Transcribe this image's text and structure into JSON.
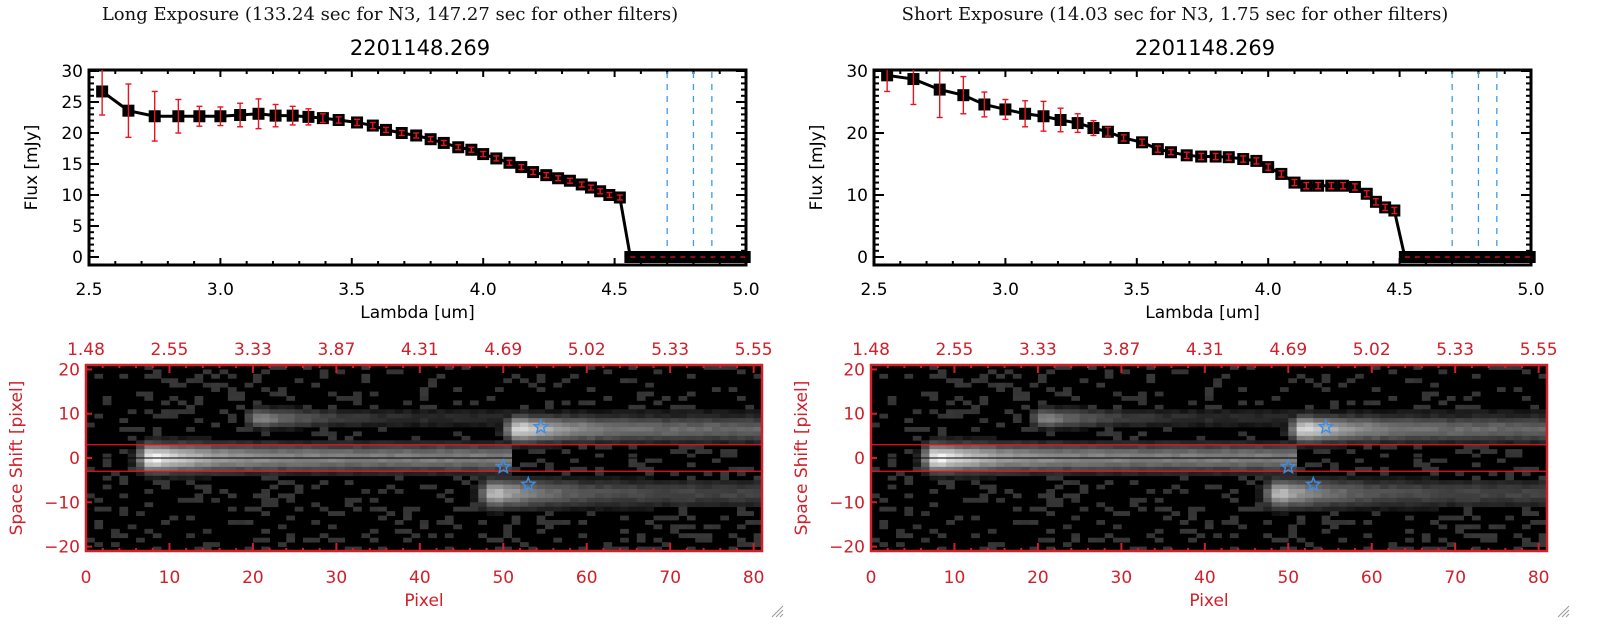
{
  "panels": [
    {
      "title": "Long Exposure (133.24 sec for N3, 147.27 sec for other filters)",
      "object_id": "2201148.269"
    },
    {
      "title": "Short Exposure (14.03 sec for N3, 1.75 sec for other filters)",
      "object_id": "2201148.269"
    }
  ],
  "colors": {
    "spectrum_line": "#000000",
    "error_bar": "#e8141e",
    "marker_fill": "#000000",
    "filter_line": "#3c9be6",
    "heatmap_frame": "#d0202a",
    "heatmap_axis_text": "#d0202a",
    "star_marker": "#3c8ee6",
    "aperture_line": "#e8141e",
    "center_line": "#000000"
  },
  "chart_data": [
    {
      "type": "line",
      "title": "2201148.269",
      "xlabel": "Lambda [um]",
      "ylabel": "Flux [mJy]",
      "xlim": [
        2.5,
        5.0
      ],
      "ylim": [
        -1,
        31
      ],
      "xticks": [
        "2.5",
        "3.0",
        "3.5",
        "4.0",
        "4.5",
        "5.0"
      ],
      "yticks": [
        "0",
        "5",
        "10",
        "15",
        "20",
        "25",
        "30"
      ],
      "ytick_values": [
        0,
        5,
        10,
        15,
        20,
        25,
        30
      ],
      "xtick_values": [
        2.5,
        3.0,
        3.5,
        4.0,
        4.5,
        5.0
      ],
      "vertical_dashed_lines": [
        4.7,
        4.8,
        4.87
      ],
      "series": [
        {
          "name": "flux",
          "x": [
            2.55,
            2.65,
            2.75,
            2.84,
            2.92,
            3.0,
            3.075,
            3.145,
            3.21,
            3.275,
            3.335,
            3.39,
            3.45,
            3.52,
            3.58,
            3.63,
            3.69,
            3.745,
            3.8,
            3.85,
            3.905,
            3.955,
            4.0,
            4.05,
            4.1,
            4.145,
            4.19,
            4.24,
            4.285,
            4.33,
            4.375,
            4.41,
            4.445,
            4.48,
            4.52,
            4.56,
            4.6,
            4.64,
            4.68,
            4.72,
            4.76,
            4.8,
            4.84,
            4.88,
            4.92,
            4.96,
            4.995
          ],
          "y": [
            26.7,
            23.6,
            22.7,
            22.7,
            22.7,
            22.7,
            22.9,
            23.1,
            22.8,
            22.8,
            22.6,
            22.4,
            22.1,
            21.7,
            21.2,
            20.5,
            20.0,
            19.6,
            19.0,
            18.4,
            17.7,
            17.3,
            16.6,
            15.9,
            15.2,
            14.5,
            13.7,
            13.2,
            12.7,
            12.3,
            11.7,
            11.2,
            10.6,
            10.0,
            9.6,
            0,
            0,
            0,
            0,
            0,
            0,
            0,
            0,
            0,
            0,
            0,
            0
          ],
          "yerr": [
            3.8,
            4.3,
            4.0,
            2.7,
            1.6,
            1.5,
            1.9,
            2.4,
            1.8,
            1.5,
            1.3,
            0.7,
            0.5,
            0.5,
            0.5,
            0.4,
            0.4,
            0.4,
            0.4,
            0.4,
            0.4,
            0.4,
            0.4,
            0.4,
            0.4,
            0.4,
            0.4,
            0.4,
            0.4,
            0.4,
            0.4,
            0.4,
            0.4,
            0.4,
            0.4,
            0,
            0,
            0,
            0,
            0,
            0,
            0,
            0,
            0,
            0,
            0,
            0
          ]
        }
      ]
    },
    {
      "type": "line",
      "title": "2201148.269",
      "xlabel": "Lambda [um]",
      "ylabel": "Flux [mJy]",
      "xlim": [
        2.5,
        5.0
      ],
      "ylim": [
        -1,
        31
      ],
      "xticks": [
        "2.5",
        "3.0",
        "3.5",
        "4.0",
        "4.5",
        "5.0"
      ],
      "yticks": [
        "0",
        "10",
        "20",
        "30"
      ],
      "ytick_values": [
        0,
        10,
        20,
        30
      ],
      "xtick_values": [
        2.5,
        3.0,
        3.5,
        4.0,
        4.5,
        5.0
      ],
      "vertical_dashed_lines": [
        4.7,
        4.8,
        4.87
      ],
      "series": [
        {
          "name": "flux",
          "x": [
            2.55,
            2.65,
            2.75,
            2.84,
            2.92,
            3.0,
            3.075,
            3.145,
            3.21,
            3.275,
            3.335,
            3.39,
            3.45,
            3.52,
            3.58,
            3.63,
            3.69,
            3.745,
            3.8,
            3.85,
            3.905,
            3.955,
            4.0,
            4.05,
            4.1,
            4.145,
            4.19,
            4.24,
            4.285,
            4.33,
            4.375,
            4.41,
            4.445,
            4.48,
            4.52,
            4.56,
            4.6,
            4.64,
            4.68,
            4.72,
            4.76,
            4.8,
            4.84,
            4.88,
            4.92,
            4.96,
            4.995
          ],
          "y": [
            29.3,
            28.7,
            27.0,
            26.1,
            24.6,
            23.8,
            23.1,
            22.7,
            22.1,
            21.6,
            20.8,
            20.2,
            19.2,
            18.5,
            17.4,
            16.9,
            16.4,
            16.2,
            16.2,
            16.1,
            15.8,
            15.5,
            14.5,
            13.4,
            12.0,
            11.5,
            11.5,
            11.5,
            11.5,
            11.3,
            10.2,
            8.9,
            8.0,
            7.5,
            0,
            0,
            0,
            0,
            0,
            0,
            0,
            0,
            0,
            0,
            0,
            0,
            0
          ],
          "yerr": [
            2.6,
            4.1,
            4.5,
            3.0,
            2.0,
            1.6,
            2.1,
            2.4,
            1.9,
            1.5,
            1.2,
            0.7,
            0.5,
            0.5,
            0.5,
            0.4,
            0.5,
            0.5,
            0.5,
            0.5,
            0.5,
            0.5,
            0.5,
            0.5,
            0.5,
            0.5,
            0.5,
            0.5,
            0.5,
            0.5,
            0.5,
            0.5,
            0.5,
            0.5,
            0,
            0,
            0,
            0,
            0,
            0,
            0,
            0,
            0,
            0,
            0,
            0,
            0
          ]
        }
      ]
    },
    {
      "type": "heatmap",
      "xlabel": "Pixel",
      "ylabel": "Space Shift [pixel]",
      "xlim": [
        0,
        81
      ],
      "ylim": [
        -21,
        21
      ],
      "xticks": [
        "0",
        "10",
        "20",
        "30",
        "40",
        "50",
        "60",
        "70",
        "80"
      ],
      "xtick_values": [
        0,
        10,
        20,
        30,
        40,
        50,
        60,
        70,
        80
      ],
      "yticks": [
        "-20",
        "-10",
        "0",
        "10",
        "20"
      ],
      "ytick_values": [
        -20,
        -10,
        0,
        10,
        20
      ],
      "top_axis_ticks": [
        "1.48",
        "2.55",
        "3.33",
        "3.87",
        "4.31",
        "4.69",
        "5.02",
        "5.33",
        "5.55"
      ],
      "aperture_lines": [
        3,
        -3
      ],
      "center_line": 0,
      "stars": [
        {
          "x": 54.5,
          "y": 7
        },
        {
          "x": 50,
          "y": -2
        },
        {
          "x": 53,
          "y": -6
        }
      ],
      "blobs": [
        {
          "x0": 5,
          "x1": 50,
          "y": 0,
          "peak": 1.0,
          "xc": 8,
          "width": 2.2,
          "tail": 0.5
        },
        {
          "x0": 16,
          "x1": 80,
          "y": 9,
          "peak": 0.55,
          "xc": 21,
          "width": 1.5,
          "tail": 0.28
        },
        {
          "x0": 48,
          "x1": 80,
          "y": 6.5,
          "peak": 0.88,
          "xc": 52,
          "width": 2.0,
          "tail": 0.45
        },
        {
          "x0": 45,
          "x1": 80,
          "y": -8,
          "peak": 0.75,
          "xc": 49,
          "width": 2.2,
          "tail": 0.35
        }
      ]
    },
    {
      "type": "heatmap",
      "xlabel": "Pixel",
      "ylabel": "Space Shift [pixel]",
      "xlim": [
        0,
        81
      ],
      "ylim": [
        -21,
        21
      ],
      "xticks": [
        "0",
        "10",
        "20",
        "30",
        "40",
        "50",
        "60",
        "70",
        "80"
      ],
      "xtick_values": [
        0,
        10,
        20,
        30,
        40,
        50,
        60,
        70,
        80
      ],
      "yticks": [
        "-20",
        "-10",
        "0",
        "10",
        "20"
      ],
      "ytick_values": [
        -20,
        -10,
        0,
        10,
        20
      ],
      "top_axis_ticks": [
        "1.48",
        "2.55",
        "3.33",
        "3.87",
        "4.31",
        "4.69",
        "5.02",
        "5.33",
        "5.55"
      ],
      "aperture_lines": [
        3,
        -3
      ],
      "center_line": 0,
      "stars": [
        {
          "x": 54.5,
          "y": 7
        },
        {
          "x": 50,
          "y": -2
        },
        {
          "x": 53,
          "y": -6
        }
      ],
      "blobs": [
        {
          "x0": 5,
          "x1": 50,
          "y": 0,
          "peak": 1.0,
          "xc": 8,
          "width": 2.2,
          "tail": 0.5
        },
        {
          "x0": 16,
          "x1": 80,
          "y": 9,
          "peak": 0.55,
          "xc": 21,
          "width": 1.5,
          "tail": 0.28
        },
        {
          "x0": 48,
          "x1": 80,
          "y": 6.5,
          "peak": 0.88,
          "xc": 52,
          "width": 2.0,
          "tail": 0.45
        },
        {
          "x0": 45,
          "x1": 80,
          "y": -8,
          "peak": 0.75,
          "xc": 49,
          "width": 2.2,
          "tail": 0.35
        }
      ]
    }
  ]
}
